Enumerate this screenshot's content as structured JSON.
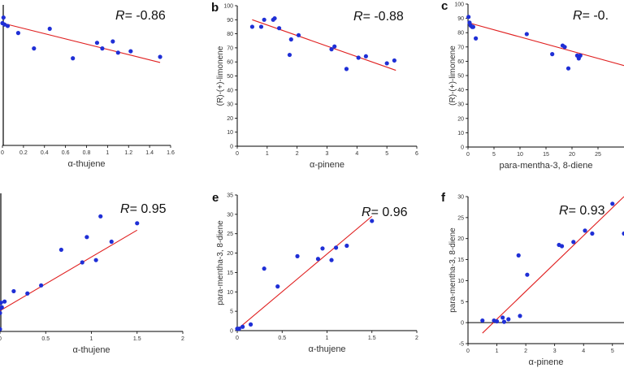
{
  "colors": {
    "point": "#1f2fd6",
    "fit": "#e01f1f",
    "axis": "#000000"
  },
  "chart_data": [
    {
      "type": "scatter",
      "panel": "a",
      "panel_label": "",
      "xlabel": "α-thujene",
      "ylabel": "",
      "r_label": "R",
      "r_value": "= -0.86",
      "xlim": [
        0,
        1.6
      ],
      "ylim": [
        0,
        100
      ],
      "xticks": [
        "0",
        "0.2",
        "0.4",
        "0.6",
        "0.8",
        "1",
        "1.2",
        "1.4",
        "1.6"
      ],
      "yticks": [],
      "x": [
        0.0,
        0.01,
        0.02,
        0.05,
        0.15,
        0.3,
        0.45,
        0.67,
        0.9,
        0.95,
        1.05,
        1.1,
        1.22,
        1.5
      ],
      "y": [
        87,
        91,
        86,
        85,
        80,
        69,
        83,
        62,
        73,
        69,
        74,
        66,
        67,
        63
      ],
      "fit": [
        [
          0,
          87
        ],
        [
          1.5,
          59
        ]
      ]
    },
    {
      "type": "scatter",
      "panel": "b",
      "panel_label": "b",
      "xlabel": "α-pinene",
      "ylabel": "(R)-(+)-limonene",
      "r_label": "R",
      "r_value": "= -0.88",
      "xlim": [
        0,
        6
      ],
      "ylim": [
        0,
        100
      ],
      "xticks": [
        "0",
        "1",
        "2",
        "3",
        "4",
        "5",
        "6"
      ],
      "yticks": [
        "0",
        "10",
        "20",
        "30",
        "40",
        "50",
        "60",
        "70",
        "80",
        "90",
        "100"
      ],
      "x": [
        0.5,
        0.8,
        0.9,
        1.2,
        1.25,
        1.4,
        1.75,
        1.8,
        2.05,
        3.15,
        3.25,
        3.65,
        4.05,
        4.3,
        5.0,
        5.25
      ],
      "y": [
        85,
        85,
        90,
        90,
        91,
        84,
        65,
        76,
        79,
        69,
        71,
        55,
        63,
        64,
        59,
        61
      ],
      "fit": [
        [
          0.5,
          90
        ],
        [
          5.3,
          54
        ]
      ]
    },
    {
      "type": "scatter",
      "panel": "c",
      "panel_label": "c",
      "xlabel": "para-mentha-3, 8-diene",
      "ylabel": "(R)-(+)-limonene",
      "r_label": "R",
      "r_value": "= -0.",
      "xlim": [
        0,
        30
      ],
      "ylim": [
        0,
        100
      ],
      "xticks": [
        "0",
        "5",
        "10",
        "15",
        "20",
        "25"
      ],
      "yticks": [
        "0",
        "10",
        "20",
        "30",
        "40",
        "50",
        "60",
        "70",
        "80",
        "90",
        "100"
      ],
      "x": [
        0.1,
        0.3,
        0.5,
        0.8,
        1.0,
        1.5,
        11.3,
        16.2,
        18.2,
        18.6,
        19.3,
        21.0,
        21.3,
        21.6
      ],
      "y": [
        91,
        87,
        85,
        84,
        84,
        76,
        79,
        65,
        71,
        70,
        55,
        64,
        62,
        64
      ],
      "fit": [
        [
          0,
          87
        ],
        [
          30,
          57
        ]
      ]
    },
    {
      "type": "scatter",
      "panel": "d",
      "panel_label": "",
      "xlabel": "α-thujene",
      "ylabel": "",
      "r_label": "R",
      "r_value": "= 0.95",
      "xlim": [
        0,
        2
      ],
      "ylim": [
        0,
        6
      ],
      "xticks": [
        "0",
        "0.5",
        "1",
        "1.5",
        "2"
      ],
      "yticks": [],
      "x": [
        0.0,
        0.0,
        0.0,
        0.01,
        0.02,
        0.05,
        0.15,
        0.3,
        0.45,
        0.67,
        0.9,
        0.95,
        1.05,
        1.1,
        1.22,
        1.5
      ],
      "y": [
        0.1,
        0.8,
        1.0,
        1.25,
        1.05,
        1.3,
        1.75,
        1.65,
        2.0,
        3.55,
        3.0,
        4.1,
        3.1,
        5.0,
        3.9,
        4.7
      ],
      "fit": [
        [
          0,
          0.9
        ],
        [
          1.5,
          4.4
        ]
      ]
    },
    {
      "type": "scatter",
      "panel": "e",
      "panel_label": "e",
      "xlabel": "α-thujene",
      "ylabel": "para-mentha-3, 8-diene",
      "r_label": "R",
      "r_value": "= 0.96",
      "xlim": [
        0,
        2
      ],
      "ylim": [
        0,
        35
      ],
      "xticks": [
        "0",
        "0.5",
        "1",
        "1.5",
        "2"
      ],
      "yticks": [
        "0",
        "5",
        "10",
        "15",
        "20",
        "25",
        "30",
        "35"
      ],
      "x": [
        0.0,
        0.02,
        0.06,
        0.15,
        0.3,
        0.45,
        0.67,
        0.9,
        0.95,
        1.05,
        1.1,
        1.22,
        1.5
      ],
      "y": [
        0.5,
        0.5,
        1.0,
        1.6,
        16.0,
        11.4,
        19.2,
        18.5,
        21.2,
        18.2,
        21.4,
        21.9,
        28.3
      ],
      "fit": [
        [
          0,
          0.3
        ],
        [
          1.5,
          29.5
        ]
      ]
    },
    {
      "type": "scatter",
      "panel": "f",
      "panel_label": "f",
      "xlabel": "α-pinene",
      "ylabel": "para-mentha-3, 8-diene",
      "r_label": "R",
      "r_value": "= 0.93",
      "xlim": [
        0,
        5.4
      ],
      "ylim": [
        -5,
        30
      ],
      "xticks": [
        "0",
        "1",
        "2",
        "3",
        "4",
        "5"
      ],
      "yticks": [
        "-5",
        "0",
        "5",
        "10",
        "15",
        "20",
        "25",
        "30"
      ],
      "x": [
        0.5,
        0.9,
        1.0,
        1.2,
        1.25,
        1.4,
        1.75,
        1.8,
        2.05,
        3.15,
        3.25,
        3.65,
        4.05,
        4.3,
        5.0,
        5.4
      ],
      "y": [
        0.5,
        0.5,
        0.3,
        1.2,
        0.2,
        0.8,
        16.0,
        1.6,
        11.4,
        18.5,
        18.2,
        19.2,
        21.9,
        21.2,
        28.3,
        21.2
      ],
      "fit": [
        [
          0.5,
          -2.5
        ],
        [
          5.4,
          30
        ]
      ]
    }
  ]
}
